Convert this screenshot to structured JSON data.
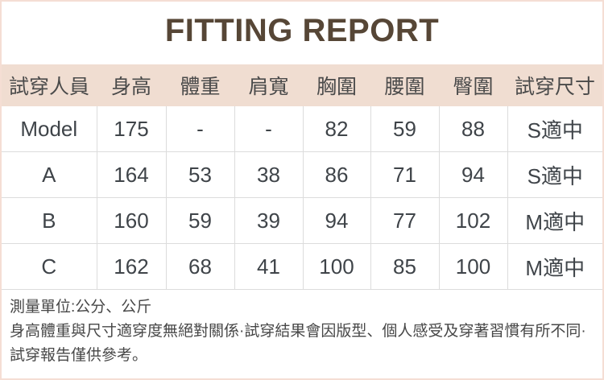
{
  "title": "FITTING REPORT",
  "table": {
    "headers": [
      "試穿人員",
      "身高",
      "體重",
      "肩寬",
      "胸圍",
      "腰圍",
      "臀圍",
      "試穿尺寸"
    ],
    "rows": [
      [
        "Model",
        "175",
        "-",
        "-",
        "82",
        "59",
        "88",
        "S適中"
      ],
      [
        "A",
        "164",
        "53",
        "38",
        "86",
        "71",
        "94",
        "S適中"
      ],
      [
        "B",
        "160",
        "59",
        "39",
        "94",
        "77",
        "102",
        "M適中"
      ],
      [
        "C",
        "162",
        "68",
        "41",
        "100",
        "85",
        "100",
        "M適中"
      ]
    ]
  },
  "notes": {
    "unit": "測量單位:公分、公斤",
    "disclaimer": "身高體重與尺寸適穿度無絕對關係·試穿結果會因版型、個人感受及穿著習慣有所不同·試穿報告僅供參考。"
  },
  "colors": {
    "title_text": "#564636",
    "header_bg": "#f0ddd1",
    "grid_border": "#dcdcdc",
    "body_text": "#3f4449",
    "note_text": "#474747",
    "outer_border": "#f5ded4"
  }
}
